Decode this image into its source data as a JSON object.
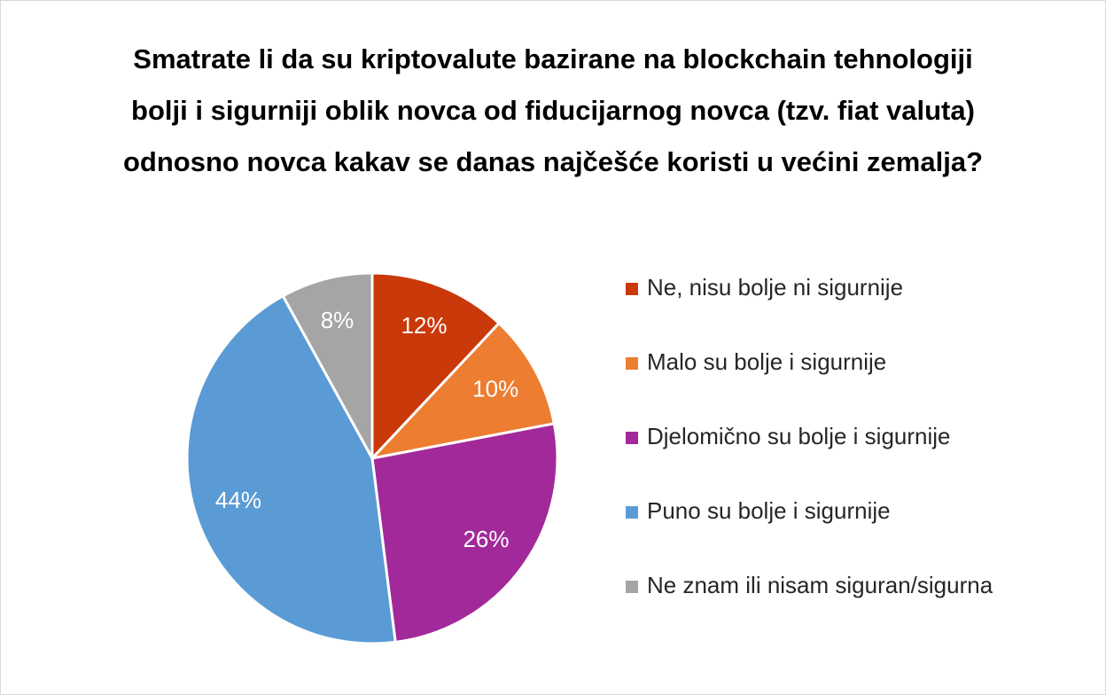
{
  "chart_data": {
    "type": "pie",
    "title": "Smatrate li da su kriptovalute bazirane na blockchain tehnologiji bolji i sigurniji oblik novca od fiducijarnog novca (tzv. fiat valuta) odnosno novca kakav se danas najčešće koristi u većini zemalja?",
    "categories": [
      "Ne, nisu bolje ni sigurnije",
      "Malo su bolje i sigurnije",
      "Djelomično su bolje i sigurnije",
      "Puno su bolje i sigurnije",
      "Ne znam ili nisam siguran/sigurna"
    ],
    "values": [
      12,
      10,
      26,
      44,
      8
    ],
    "value_labels": [
      "12%",
      "10%",
      "26%",
      "44%",
      "8%"
    ],
    "colors": [
      "#c9390a",
      "#ed7d31",
      "#a2299a",
      "#5b9bd5",
      "#a5a5a5"
    ],
    "legend": "right"
  }
}
